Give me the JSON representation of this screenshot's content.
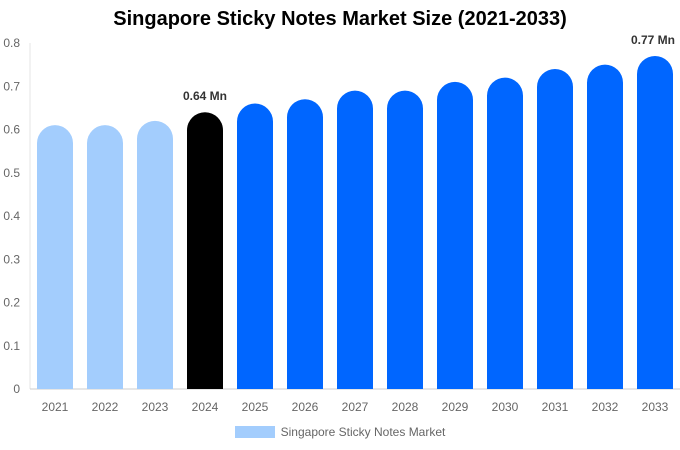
{
  "chart_data": {
    "type": "bar",
    "title": "Singapore Sticky Notes Market Size (2021-2033)",
    "xlabel": "",
    "ylabel": "",
    "categories": [
      "2021",
      "2022",
      "2023",
      "2024",
      "2025",
      "2026",
      "2027",
      "2028",
      "2029",
      "2030",
      "2031",
      "2032",
      "2033"
    ],
    "series": [
      {
        "name": "Singapore Sticky Notes Market",
        "values": [
          0.61,
          0.61,
          0.62,
          0.64,
          0.66,
          0.67,
          0.69,
          0.69,
          0.71,
          0.72,
          0.74,
          0.75,
          0.77
        ]
      }
    ],
    "ylim": [
      0,
      0.8
    ],
    "yticks": [
      "0",
      "0.1",
      "0.2",
      "0.3",
      "0.4",
      "0.5",
      "0.6",
      "0.7",
      "0.8"
    ],
    "annotations": [
      {
        "category": "2024",
        "text": "0.64 Mn"
      },
      {
        "category": "2033",
        "text": "0.77 Mn"
      }
    ],
    "grid": false,
    "legend_position": "bottom",
    "colors": {
      "historical": "#a3cdfd",
      "current": "#000000",
      "forecast": "#0066ff"
    }
  }
}
